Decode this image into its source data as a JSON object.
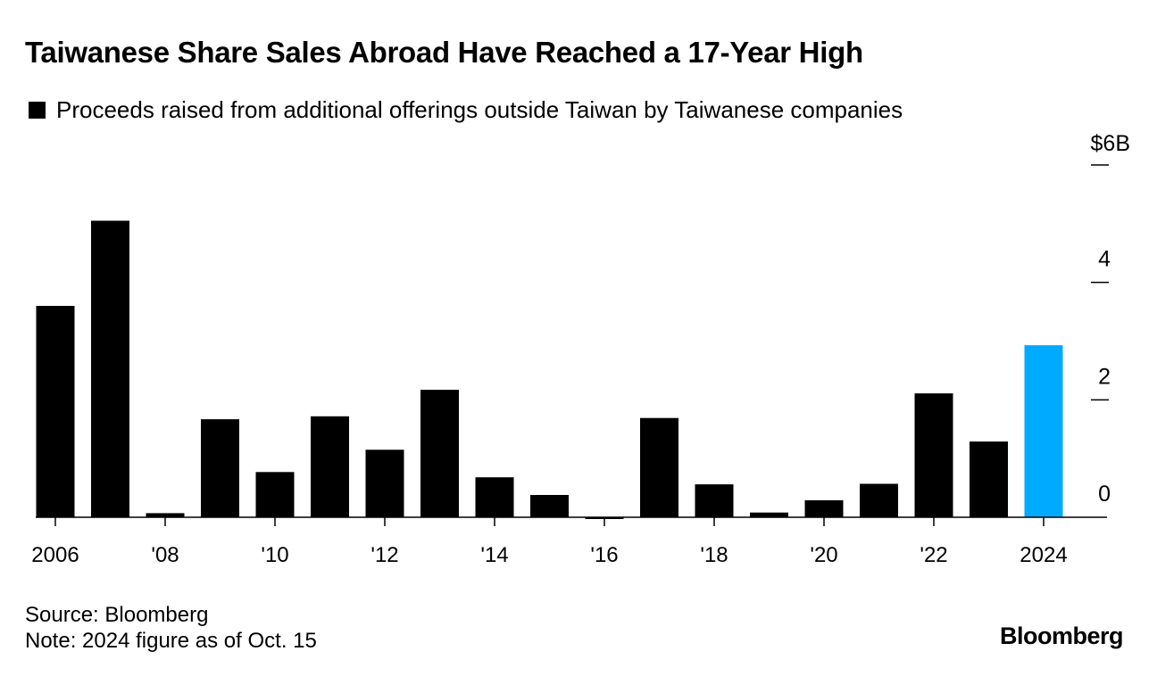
{
  "colors": {
    "bar": "#000000",
    "highlight": "#00aaff",
    "axis": "#000000",
    "text": "#000000"
  },
  "chart_data": {
    "type": "bar",
    "title": "Taiwanese Share Sales Abroad Have Reached a 17-Year High",
    "legend": "Proceeds raised from additional offerings outside Taiwan by Taiwanese companies",
    "categories": [
      "2006",
      "2007",
      "2008",
      "2009",
      "2010",
      "2011",
      "2012",
      "2013",
      "2014",
      "2015",
      "2016",
      "2017",
      "2018",
      "2019",
      "2020",
      "2021",
      "2022",
      "2023",
      "2024"
    ],
    "x_tick_labels": [
      "2006",
      "",
      "'08",
      "",
      "'10",
      "",
      "'12",
      "",
      "'14",
      "",
      "'16",
      "",
      "'18",
      "",
      "'20",
      "",
      "'22",
      "",
      "2024"
    ],
    "values": [
      3.6,
      5.05,
      0.07,
      1.67,
      0.77,
      1.72,
      1.15,
      2.17,
      0.68,
      0.38,
      -0.03,
      1.69,
      0.56,
      0.08,
      0.29,
      0.57,
      2.11,
      1.29,
      2.93
    ],
    "highlight_index": 18,
    "y_ticks": [
      0,
      2,
      4,
      6
    ],
    "y_tick_labels": [
      "0",
      "2",
      "4",
      "$6B"
    ],
    "ylim": [
      0,
      6
    ],
    "ylabel": "",
    "xlabel": "",
    "grid": false,
    "legend_position": "top-left",
    "y_axis_side": "right"
  },
  "footer": {
    "source": "Source: Bloomberg",
    "note": "Note: 2024 figure as of Oct. 15",
    "brand": "Bloomberg"
  }
}
